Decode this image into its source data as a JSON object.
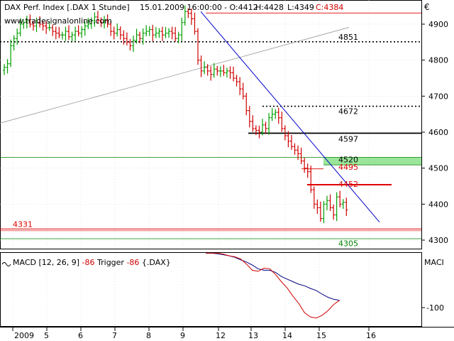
{
  "header": {
    "symbol": "DAX Perf. Index [.DAX  1 Stunde]",
    "datetime": "15.01.2009 16:00:00",
    "open": "- O:4412",
    "high": "H:4428",
    "low": "L:4349",
    "close": "C:4384",
    "watermark": "www.tradesignalonline.com",
    "currency": "€"
  },
  "colors": {
    "up": "#00a000",
    "down": "#d00000",
    "trendline": "#0000cc",
    "gray_trend": "#999999",
    "macd": "#000080",
    "trigger": "#d00000",
    "zone": "#9be59b",
    "hline_red": "#e00000",
    "hline_black": "#000000",
    "hline_green": "#008000",
    "axis": "#000000",
    "grid": "#cccccc"
  },
  "chart_data": [
    {
      "type": "ohlc",
      "title": "DAX Perf. Index [.DAX  1 Stunde]",
      "ylim": [
        4280,
        4940
      ],
      "y_ticks": [
        4900,
        4800,
        4700,
        4600,
        4500,
        4400,
        4300
      ],
      "x_ticks": [
        "2009",
        "5",
        "6",
        "7",
        "8",
        "9",
        "12",
        "13",
        "14",
        "15",
        "16"
      ],
      "grid": true,
      "close": [
        4780,
        4790,
        4840,
        4860,
        4875,
        4900,
        4905,
        4910,
        4900,
        4895,
        4905,
        4900,
        4895,
        4890,
        4890,
        4880,
        4875,
        4870,
        4870,
        4880,
        4865,
        4870,
        4880,
        4875,
        4885,
        4895,
        4900,
        4910,
        4920,
        4910,
        4905,
        4910,
        4900,
        4880,
        4875,
        4885,
        4870,
        4860,
        4850,
        4840,
        4855,
        4870,
        4860,
        4875,
        4880,
        4885,
        4870,
        4875,
        4880,
        4870,
        4875,
        4880,
        4875,
        4860,
        4870,
        4905,
        4935,
        4930,
        4915,
        4880,
        4800,
        4770,
        4780,
        4770,
        4760,
        4775,
        4770,
        4770,
        4765,
        4770,
        4765,
        4750,
        4740,
        4720,
        4700,
        4660,
        4630,
        4610,
        4605,
        4600,
        4620,
        4610,
        4640,
        4650,
        4655,
        4640,
        4610,
        4590,
        4575,
        4560,
        4550,
        4540,
        4520,
        4500,
        4490,
        4440,
        4400,
        4390,
        4360,
        4400,
        4410,
        4390,
        4370,
        4420,
        4400,
        4405,
        4384
      ],
      "annotations": [
        {
          "label": "4851",
          "value": 4851,
          "style": "dotted",
          "color": "#000000"
        },
        {
          "label": "4672",
          "value": 4672,
          "style": "dotted",
          "color": "#000000"
        },
        {
          "label": "4597",
          "value": 4597,
          "style": "solid",
          "color": "#000000"
        },
        {
          "label": "4520",
          "value": 4520,
          "style": "zone",
          "color": "#008000"
        },
        {
          "label": "4495",
          "value": 4495,
          "style": "solid",
          "color": "#e00000"
        },
        {
          "label": "4452",
          "value": 4452,
          "style": "solid",
          "color": "#e00000"
        },
        {
          "label": "4331",
          "value": 4331,
          "style": "solid",
          "color": "#e00000"
        },
        {
          "label": "4305",
          "value": 4305,
          "style": "solid",
          "color": "#008000"
        }
      ]
    },
    {
      "type": "line",
      "title": "MACD [12, 26, 9]",
      "series": [
        {
          "name": "MACD [12, 26, 9]",
          "value_label": "-86",
          "values": [
            5,
            5,
            4,
            2,
            0,
            -3,
            -8,
            -12,
            -18,
            -25,
            -28,
            -28,
            -32,
            -40,
            -45,
            -50,
            -55,
            -58,
            -63,
            -67,
            -74,
            -80,
            -84,
            -86
          ]
        },
        {
          "name": "Trigger",
          "value_label": "-86",
          "values": [
            5,
            5,
            5,
            3,
            0,
            -2,
            -6,
            -16,
            -28,
            -30,
            -24,
            -25,
            -36,
            -50,
            -62,
            -78,
            -92,
            -110,
            -118,
            -120,
            -115,
            -106,
            -94,
            -86
          ]
        }
      ],
      "instrument": "{.DAX}",
      "axis_label": "MACI",
      "y_ticks": [
        -100
      ],
      "ylim": [
        -130,
        20
      ]
    }
  ]
}
